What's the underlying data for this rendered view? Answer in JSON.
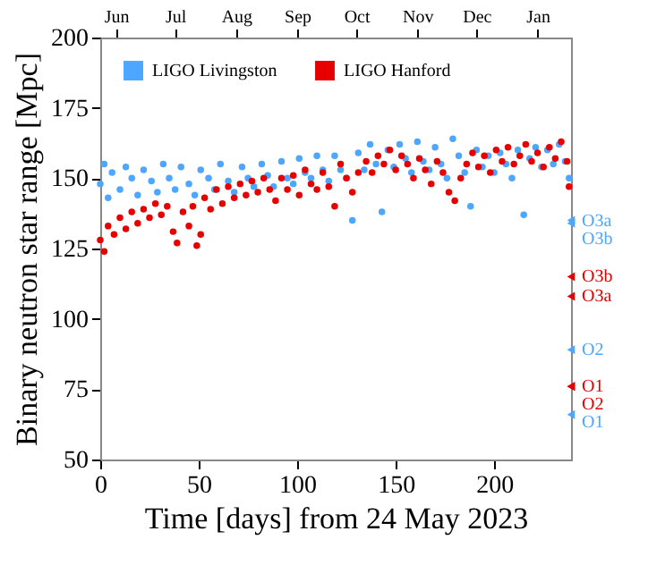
{
  "chart_data": {
    "type": "scatter",
    "xlabel": "Time [days] from 24 May 2023",
    "ylabel": "Binary neutron star range [Mpc]",
    "xlim": [
      0,
      239
    ],
    "xticks": [
      0,
      50,
      100,
      150,
      200
    ],
    "x2lim": [
      "2023-05-24",
      "2024-01-18"
    ],
    "x2ticks": [
      {
        "value": "2023-06-01",
        "label": "Jun"
      },
      {
        "value": "2023-07-01",
        "label": "Jul"
      },
      {
        "value": "2023-08-01",
        "label": "Aug"
      },
      {
        "value": "2023-09-01",
        "label": "Sep"
      },
      {
        "value": "2023-10-01",
        "label": "Oct"
      },
      {
        "value": "2023-11-01",
        "label": "Nov"
      },
      {
        "value": "2023-12-01",
        "label": "Dec"
      },
      {
        "value": "2024-01-01",
        "label": "Jan"
      }
    ],
    "ylim": [
      50,
      200
    ],
    "yticks": [
      50,
      75,
      100,
      125,
      150,
      175,
      200
    ],
    "grid": false,
    "legend": "top left",
    "marker": "circle",
    "series": [
      {
        "name": "LIGO Livingston",
        "color": "#4da6ff",
        "x": [
          0,
          2,
          4,
          6,
          10,
          13,
          16,
          19,
          22,
          26,
          29,
          32,
          35,
          38,
          41,
          45,
          48,
          51,
          55,
          58,
          61,
          65,
          68,
          72,
          75,
          78,
          82,
          85,
          88,
          92,
          95,
          98,
          101,
          104,
          107,
          110,
          113,
          116,
          119,
          122,
          125,
          128,
          131,
          134,
          137,
          140,
          143,
          146,
          149,
          152,
          155,
          158,
          161,
          164,
          167,
          170,
          173,
          176,
          179,
          182,
          185,
          188,
          191,
          194,
          197,
          200,
          203,
          206,
          209,
          212,
          215,
          218,
          221,
          224,
          227,
          230,
          233,
          236,
          238
        ],
        "values": [
          148,
          155,
          143,
          152,
          146,
          154,
          150,
          144,
          153,
          149,
          145,
          155,
          150,
          146,
          154,
          148,
          144,
          153,
          150,
          146,
          155,
          149,
          145,
          154,
          150,
          147,
          155,
          151,
          147,
          156,
          150,
          148,
          157,
          152,
          150,
          158,
          153,
          149,
          158,
          153,
          150,
          135,
          159,
          153,
          162,
          155,
          138,
          160,
          154,
          162,
          157,
          152,
          163,
          156,
          153,
          161,
          155,
          150,
          164,
          158,
          152,
          140,
          160,
          154,
          158,
          152,
          159,
          155,
          150,
          160,
          137,
          157,
          161,
          154,
          160,
          155,
          162,
          156,
          150
        ]
      },
      {
        "name": "LIGO Hanford",
        "color": "#e60000",
        "x": [
          0,
          2,
          4,
          7,
          10,
          13,
          16,
          19,
          22,
          25,
          28,
          31,
          34,
          37,
          39,
          42,
          45,
          47,
          49,
          51,
          53,
          56,
          59,
          62,
          65,
          68,
          71,
          74,
          77,
          80,
          83,
          86,
          89,
          92,
          95,
          98,
          101,
          104,
          107,
          110,
          113,
          116,
          119,
          122,
          125,
          128,
          131,
          135,
          138,
          141,
          144,
          147,
          150,
          153,
          156,
          159,
          162,
          165,
          168,
          171,
          174,
          177,
          180,
          183,
          186,
          189,
          192,
          195,
          198,
          201,
          204,
          207,
          210,
          213,
          216,
          219,
          222,
          225,
          228,
          231,
          234,
          237,
          238
        ],
        "values": [
          128,
          124,
          133,
          130,
          136,
          132,
          138,
          134,
          139,
          136,
          141,
          137,
          140,
          131,
          127,
          138,
          133,
          140,
          126,
          130,
          143,
          139,
          146,
          141,
          147,
          143,
          148,
          144,
          149,
          145,
          150,
          146,
          142,
          150,
          146,
          151,
          144,
          153,
          148,
          146,
          152,
          147,
          140,
          155,
          150,
          145,
          152,
          156,
          152,
          158,
          155,
          160,
          153,
          158,
          155,
          150,
          157,
          153,
          148,
          156,
          152,
          145,
          142,
          150,
          155,
          159,
          154,
          158,
          152,
          160,
          156,
          161,
          155,
          158,
          162,
          156,
          159,
          154,
          161,
          157,
          163,
          156,
          147
        ]
      },
      {
        "type": "scatter",
        "marker": "triangle",
        "color": "#4da6ff",
        "x": [
          239,
          239,
          239,
          239
        ],
        "values": [
          66,
          89,
          135,
          134
        ],
        "value_labels": [
          "O1",
          "O2",
          "O3a",
          "O3b"
        ]
      },
      {
        "type": "scatter",
        "marker": "triangle",
        "color": "#e60000",
        "x": [
          239,
          239,
          239,
          239
        ],
        "values": [
          76,
          76,
          108,
          115
        ],
        "value_labels": [
          "O1",
          "O2",
          "O3a",
          "O3b"
        ]
      }
    ]
  }
}
